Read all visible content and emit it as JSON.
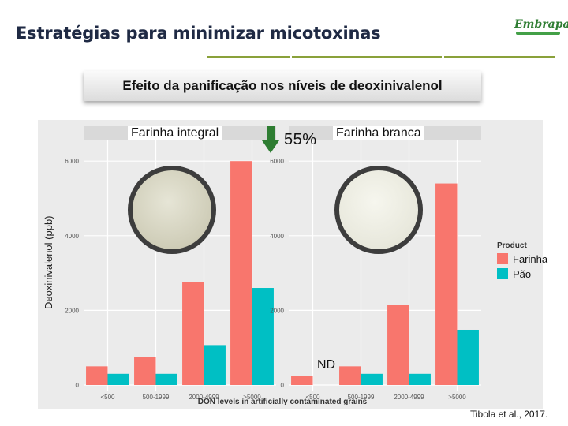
{
  "slide": {
    "title": "Estratégias para minimizar micotoxinas",
    "subtitle": "Efeito da panificação nos níveis de deoxinivalenol",
    "logo_text": "Embrapa",
    "citation": "Tibola et al., 2017.",
    "reduction_label": "55%",
    "nd_label": "ND",
    "accent_color": "#8aa13a"
  },
  "chart_data": {
    "type": "bar",
    "title": "",
    "xlabel": "DON levels in artificially contaminated grains",
    "ylabel": "Deoxinivalenol (ppb)",
    "ylim": [
      0,
      6300
    ],
    "yticks": [
      0,
      2000,
      4000,
      6000
    ],
    "ytick_labels": [
      "0",
      "2000",
      "4000",
      "6000"
    ],
    "categories": [
      "<500",
      "500-1999",
      "2000-4999",
      ">5000"
    ],
    "grid": true,
    "legend": {
      "title": "Product",
      "position": "right",
      "items": [
        {
          "label": "Farinha",
          "color": "#f8766d"
        },
        {
          "label": "Pão",
          "color": "#00bfc4"
        }
      ]
    },
    "panels": [
      {
        "label": "Farinha integral",
        "series": [
          {
            "name": "Farinha",
            "color": "#f8766d",
            "values": [
              500,
              750,
              2750,
              6000
            ]
          },
          {
            "name": "Pão",
            "color": "#00bfc4",
            "values": [
              300,
              300,
              1070,
              2600
            ]
          }
        ]
      },
      {
        "label": "Farinha branca",
        "series": [
          {
            "name": "Farinha",
            "color": "#f8766d",
            "values": [
              250,
              500,
              2150,
              5400
            ]
          },
          {
            "name": "Pão",
            "color": "#00bfc4",
            "values": [
              null,
              300,
              300,
              1480
            ]
          }
        ]
      }
    ]
  }
}
